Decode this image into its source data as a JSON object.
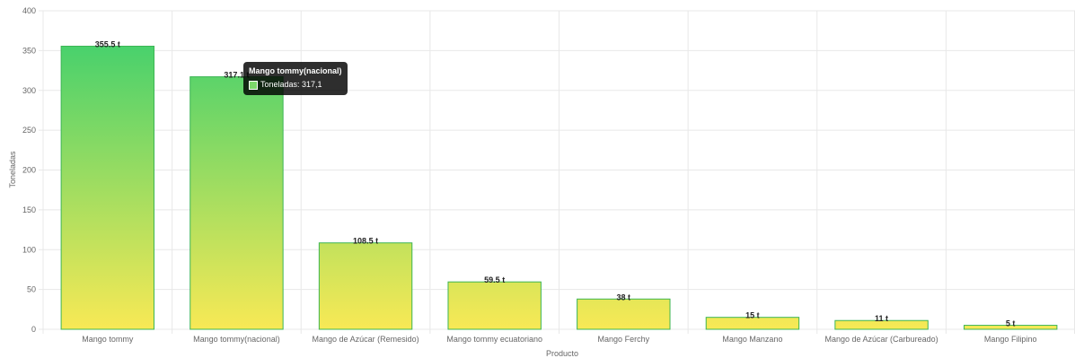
{
  "chart_data": {
    "type": "bar",
    "xlabel": "Producto",
    "ylabel": "Toneladas",
    "ylim": [
      0,
      400
    ],
    "yticks": [
      0,
      50,
      100,
      150,
      200,
      250,
      300,
      350,
      400
    ],
    "grid": true,
    "categories": [
      "Mango tommy",
      "Mango tommy(nacional)",
      "Mango de Azúcar (Remesido)",
      "Mango tommy ecuatoriano",
      "Mango Ferchy",
      "Mango Manzano",
      "Mango de Azúcar (Carbureado)",
      "Mango Filipino"
    ],
    "series": [
      {
        "name": "Toneladas",
        "values": [
          355.5,
          317.1,
          108.5,
          59.5,
          38,
          15,
          11,
          5
        ]
      }
    ],
    "data_labels": [
      "355.5 t",
      "317.1 t",
      "108.5 t",
      "59.5 t",
      "38 t",
      "15 t",
      "11 t",
      "5 t"
    ],
    "colors": {
      "gradient_top": "#49d16c",
      "gradient_bottom": "#f8e955",
      "bar_border": "#3cb554",
      "grid": "#e8e8e8"
    }
  },
  "tooltip": {
    "title": "Mango tommy(nacional)",
    "text": "Toneladas: 317,1"
  }
}
